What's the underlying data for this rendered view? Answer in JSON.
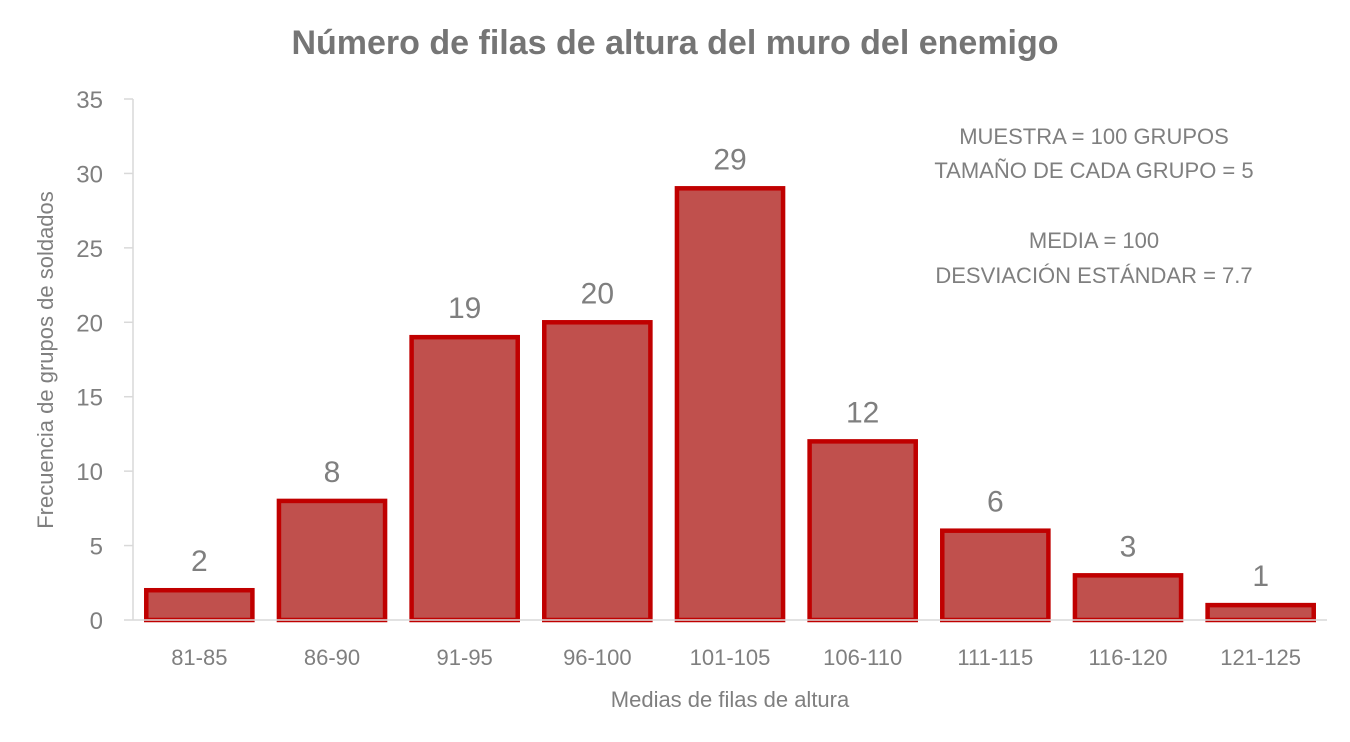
{
  "chart_data": {
    "type": "bar",
    "title": "Número de filas de altura del muro del enemigo",
    "xlabel": "Medias de filas de altura",
    "ylabel": "Frecuencia de grupos de soldados",
    "categories": [
      "81-85",
      "86-90",
      "91-95",
      "96-100",
      "101-105",
      "106-110",
      "111-115",
      "116-120",
      "121-125"
    ],
    "values": [
      2,
      8,
      19,
      20,
      29,
      12,
      6,
      3,
      1
    ],
    "ylim": [
      0,
      35
    ],
    "yticks": [
      0,
      5,
      10,
      15,
      20,
      25,
      30,
      35
    ],
    "grid": false,
    "data_labels": true,
    "bar_fill": "#c0504d",
    "bar_stroke": "#c00000",
    "annotations": [
      "MUESTRA = 100 GRUPOS",
      "TAMAÑO DE CADA GRUPO = 5",
      "MEDIA = 100",
      "DESVIACIÓN ESTÁNDAR = 7.7"
    ]
  }
}
